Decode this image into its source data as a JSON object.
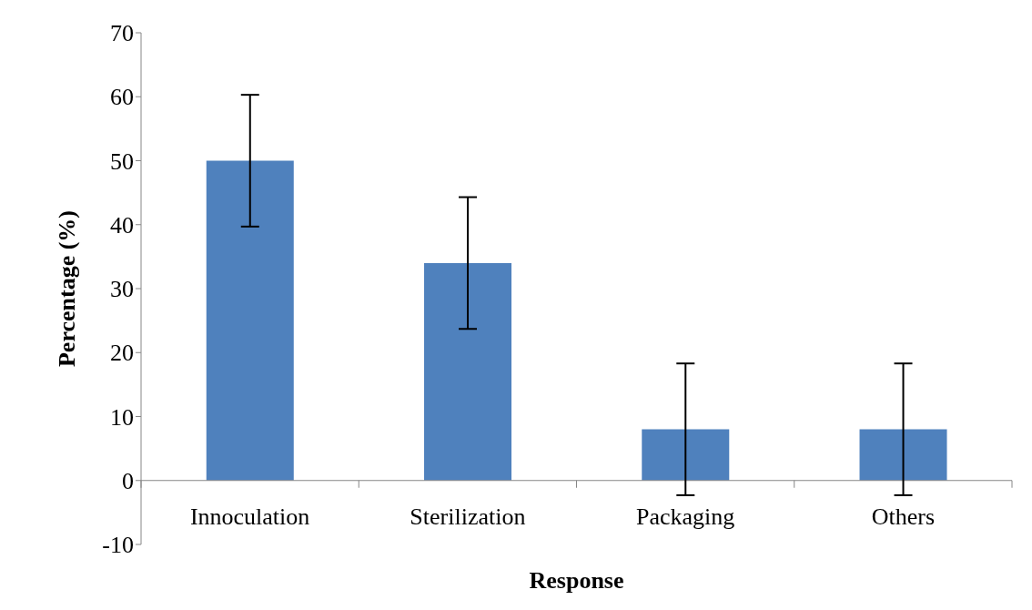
{
  "chart_data": {
    "type": "bar",
    "xlabel": "Response",
    "ylabel": "Percentage (%)",
    "categories": [
      "Innoculation",
      "Sterilization",
      "Packaging",
      "Others"
    ],
    "values": [
      50,
      34,
      8,
      8
    ],
    "errors": [
      10.3,
      10.3,
      10.3,
      10.3
    ],
    "color": "#4f81bd",
    "ylim": [
      -10,
      70
    ],
    "yticks": [
      -10,
      0,
      10,
      20,
      30,
      40,
      50,
      60,
      70
    ],
    "grid": false,
    "legend": false
  }
}
